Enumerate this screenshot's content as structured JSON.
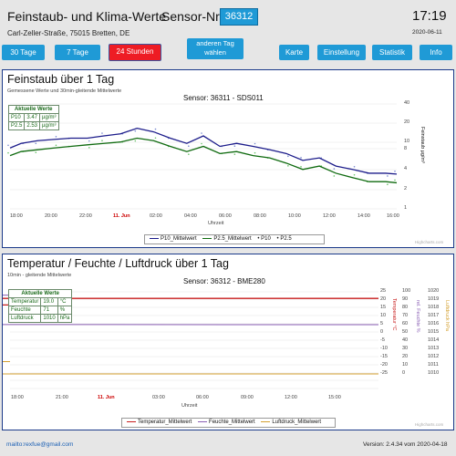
{
  "header": {
    "title": "Feinstaub- und Klima-Werte",
    "sensor_label": "Sensor-Nr:",
    "sensor_value": "36312",
    "time": "17:19",
    "address": "Carl-Zeller-Straße, 75015 Bretten, DE",
    "date": "2020-06-11"
  },
  "buttons": {
    "b30": "30 Tage",
    "b7": "7 Tage",
    "b24": "24 Stunden",
    "other_line1": "anderen Tag",
    "other_line2": "wählen",
    "map": "Karte",
    "settings": "Einstellung",
    "stats": "Statistik",
    "info": "Info"
  },
  "fine_dust": {
    "title": "Feinstaub über 1 Tag",
    "subtitle": "Gemessene Werte und 30min-gleitende Mittelwerte",
    "sensor": "Sensor: 36311 - SDS011",
    "current_title": "Aktuelle Werte",
    "rows": [
      {
        "name": "P10",
        "value": "3.47",
        "unit": "µg/m³"
      },
      {
        "name": "P2.5",
        "value": "2.53",
        "unit": "µg/m³"
      }
    ],
    "y_title": "Feinstaub µg/m³",
    "x_title": "Uhrzeit",
    "y_ticks": [
      "40",
      "20",
      "10",
      "8",
      "4",
      "2",
      "1"
    ],
    "x_ticks": [
      "18:00",
      "20:00",
      "22:00",
      "11. Jun",
      "02:00",
      "04:00",
      "06:00",
      "08:00",
      "10:00",
      "12:00",
      "14:00",
      "16:00"
    ],
    "legend": [
      "P10_Mittelwert",
      "P2.5_Mittelwert",
      "P10",
      "P2.5"
    ],
    "credit": "Highcharts.com"
  },
  "climate": {
    "title": "Temperatur / Feuchte / Luftdruck über 1 Tag",
    "subtitle": "10min - gleitende Mittelwerte",
    "sensor": "Sensor: 36312 - BME280",
    "current_title": "Aktuelle Werte",
    "rows": [
      {
        "name": "Temperatur",
        "value": "19.0",
        "unit": "°C"
      },
      {
        "name": "Feuchte",
        "value": "71",
        "unit": "%"
      },
      {
        "name": "Luftdruck",
        "value": "1010",
        "unit": "hPa"
      }
    ],
    "temp_title": "Temperatur °C",
    "hum_title": "rel. Feuchte %",
    "press_title": "Luftdruck hPa",
    "temp_ticks": [
      "25",
      "20",
      "15",
      "10",
      "5",
      "0",
      "-5",
      "-10",
      "-15",
      "-20",
      "-25"
    ],
    "hum_ticks": [
      "100",
      "90",
      "80",
      "70",
      "60",
      "50",
      "40",
      "30",
      "20",
      "10",
      "0"
    ],
    "press_ticks": [
      "1020",
      "1019",
      "1018",
      "1017",
      "1016",
      "1015",
      "1014",
      "1013",
      "1012",
      "1011",
      "1010"
    ],
    "x_ticks": [
      "18:00",
      "21:00",
      "11. Jun",
      "03:00",
      "06:00",
      "09:00",
      "12:00",
      "15:00"
    ],
    "x_title": "Uhrzeit",
    "legend": [
      "Temperatur_Mittelwert",
      "Feuchte_Mittelwert",
      "Luftdruck_Mittelwert"
    ],
    "credit": "Highcharts.com"
  },
  "footer": {
    "mail": "mailto:rexfue@gmail.com",
    "version": "Version: 2.4.34 vom 2020-04-18"
  },
  "colors": {
    "button": "#1f9ad6",
    "active": "#ee1c24",
    "p10": "#1b1b8a",
    "p25": "#0f6a0f",
    "temp": "#c81e1e",
    "hum": "#8a5fb4",
    "press": "#d4a030"
  },
  "chart_data": [
    {
      "type": "line",
      "title": "Feinstaub über 1 Tag",
      "x": [
        "17:20",
        "18:00",
        "19:00",
        "20:00",
        "21:00",
        "22:00",
        "23:00",
        "00:00",
        "01:00",
        "02:00",
        "03:00",
        "04:00",
        "05:00",
        "06:00",
        "07:00",
        "08:00",
        "09:00",
        "10:00",
        "11:00",
        "12:00",
        "13:00",
        "14:00",
        "15:00",
        "16:00",
        "16:40"
      ],
      "series": [
        {
          "name": "P10_Mittelwert",
          "values": [
            8.5,
            10,
            11,
            11.5,
            12,
            12,
            13,
            14,
            17,
            15,
            12,
            10,
            13,
            9,
            10,
            9,
            8,
            7,
            5.5,
            6,
            4.5,
            4,
            3.5,
            3.5,
            3.4
          ]
        },
        {
          "name": "P2.5_Mittelwert",
          "values": [
            6.5,
            7.5,
            8,
            8.5,
            9,
            9.5,
            10,
            10.5,
            12,
            11,
            9,
            7.5,
            9,
            7,
            7.5,
            6.5,
            6,
            5,
            4,
            4.5,
            3.5,
            3,
            2.6,
            2.6,
            2.5
          ]
        }
      ],
      "ylabel": "Feinstaub µg/m³",
      "xlabel": "Uhrzeit",
      "ylim": [
        1,
        40
      ],
      "log_scale": true
    },
    {
      "type": "line",
      "title": "Temperatur / Feuchte / Luftdruck über 1 Tag",
      "x": [
        "17:20",
        "18:00",
        "21:00",
        "00:00",
        "03:00",
        "06:00",
        "09:00",
        "12:00",
        "15:00",
        "16:00",
        "17:00"
      ],
      "series": [
        {
          "name": "Temperatur_Mittelwert",
          "values": [
            17,
            17,
            16,
            16,
            16,
            16,
            17,
            18,
            19,
            21,
            21
          ]
        },
        {
          "name": "Feuchte_Mittelwert",
          "values": [
            96,
            96,
            96,
            96,
            96,
            96,
            96,
            96,
            90,
            67,
            60
          ]
        },
        {
          "name": "Luftdruck_Mittelwert",
          "values": [
            1011.5,
            1011.5,
            1011.5,
            1011.4,
            1011.2,
            1010.8,
            1010.5,
            1010.3,
            1010.1,
            1010.0,
            1010.0
          ]
        }
      ],
      "xlabel": "Uhrzeit"
    }
  ]
}
